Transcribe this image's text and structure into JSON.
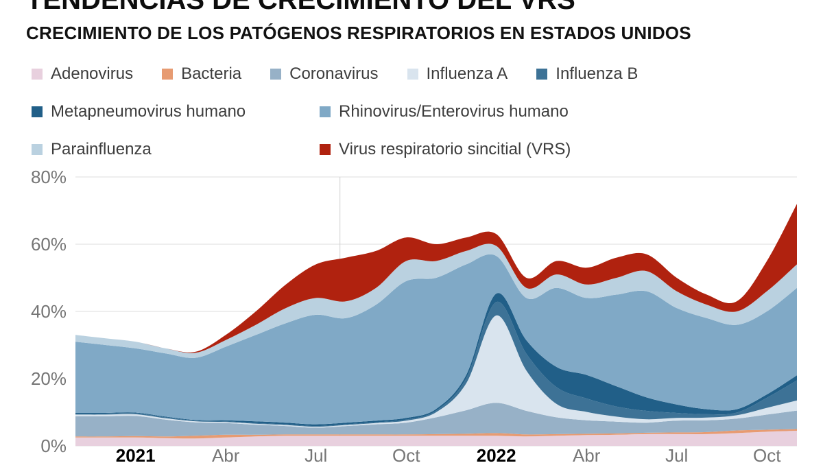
{
  "chart_data": {
    "type": "area",
    "stacked": true,
    "title": "TENDENCIAS DE CRECIMIENTO DEL VRS",
    "subtitle": "CRECIMIENTO DE LOS PATÓGENOS RESPIRATORIOS EN ESTADOS UNIDOS",
    "xlabel": "",
    "ylabel": "",
    "ylim": [
      0,
      80
    ],
    "yticks": [
      0,
      20,
      40,
      60,
      80
    ],
    "ytick_suffix": "%",
    "grid": "horizontal",
    "legend_position": "top",
    "vertical_gridline_index": 8.8,
    "x": [
      "2020-11",
      "2020-12",
      "2021-01",
      "2021-02",
      "2021-03",
      "2021-04",
      "2021-05",
      "2021-06",
      "2021-07",
      "2021-08",
      "2021-09",
      "2021-10",
      "2021-11",
      "2021-12",
      "2022-01",
      "2022-02",
      "2022-03",
      "2022-04",
      "2022-05",
      "2022-06",
      "2022-07",
      "2022-08",
      "2022-09",
      "2022-10",
      "2022-11"
    ],
    "x_ticks": [
      {
        "index": 2,
        "label": "2021",
        "bold": true
      },
      {
        "index": 5,
        "label": "Abr",
        "bold": false
      },
      {
        "index": 8,
        "label": "Jul",
        "bold": false
      },
      {
        "index": 11,
        "label": "Oct",
        "bold": false
      },
      {
        "index": 14,
        "label": "2022",
        "bold": true
      },
      {
        "index": 17,
        "label": "Abr",
        "bold": false
      },
      {
        "index": 20,
        "label": "Jul",
        "bold": false
      },
      {
        "index": 23,
        "label": "Oct",
        "bold": false
      }
    ],
    "legend_rows": [
      [
        0,
        1,
        2,
        3,
        4
      ],
      [
        5,
        6
      ],
      [
        7,
        8
      ]
    ],
    "series": [
      {
        "name": "Adenovirus",
        "color": "#e8d0de",
        "values": [
          2.5,
          2.5,
          2.5,
          2.3,
          2.2,
          2.5,
          2.8,
          3,
          3,
          3,
          3,
          3,
          3,
          3,
          3,
          2.8,
          3,
          3.2,
          3.3,
          3.5,
          3.5,
          3.5,
          3.8,
          4.2,
          4.5
        ]
      },
      {
        "name": "Bacteria",
        "color": "#e79b72",
        "values": [
          0.3,
          0.3,
          0.4,
          0.5,
          0.8,
          0.8,
          0.5,
          0.4,
          0.4,
          0.4,
          0.4,
          0.4,
          0.5,
          0.6,
          0.8,
          0.6,
          0.5,
          0.4,
          0.4,
          0.4,
          0.5,
          0.6,
          0.8,
          0.6,
          0.5
        ]
      },
      {
        "name": "Coronavirus",
        "color": "#97b1c7",
        "values": [
          6,
          6,
          6,
          5,
          4,
          3.5,
          3,
          2.5,
          2,
          2.5,
          3,
          3.5,
          5,
          7,
          9,
          7,
          5,
          4,
          3.5,
          3,
          3.5,
          3.5,
          3.5,
          4.5,
          5.5
        ]
      },
      {
        "name": "Influenza A",
        "color": "#d9e4ee",
        "values": [
          0.5,
          0.5,
          0.5,
          0.4,
          0.3,
          0.3,
          0.3,
          0.3,
          0.3,
          0.3,
          0.4,
          0.6,
          1.5,
          8,
          26,
          12,
          4,
          2.5,
          1.5,
          1,
          0.8,
          0.8,
          1,
          2,
          3
        ]
      },
      {
        "name": "Influenza B",
        "color": "#3d7296",
        "values": [
          0.3,
          0.3,
          0.3,
          0.3,
          0.2,
          0.2,
          0.2,
          0.2,
          0.2,
          0.2,
          0.2,
          0.3,
          0.5,
          1.5,
          4,
          5,
          5,
          4,
          3,
          2.5,
          1.5,
          1,
          0.8,
          3,
          6
        ]
      },
      {
        "name": "Metapneumovirus humano",
        "color": "#215f88",
        "values": [
          0.2,
          0.2,
          0.2,
          0.2,
          0.2,
          0.3,
          0.5,
          0.5,
          0.5,
          0.5,
          0.5,
          0.5,
          0.5,
          1,
          2.5,
          4,
          6,
          7,
          6,
          4,
          2.5,
          1.5,
          1,
          1,
          1.5
        ]
      },
      {
        "name": "Rhinovirus/Enterovirus humano",
        "color": "#80a9c6",
        "values": [
          21.2,
          20.2,
          19.1,
          18.8,
          18.5,
          21.9,
          25.7,
          29.6,
          32.6,
          31.1,
          34.5,
          40.7,
          39,
          32.9,
          11.2,
          12.6,
          23.5,
          22.9,
          27.3,
          31.6,
          28.7,
          27.1,
          25.1,
          24.7,
          26
        ]
      },
      {
        "name": "Parainfluenza",
        "color": "#bad1e0",
        "values": [
          2,
          2,
          2,
          1.5,
          1.5,
          2,
          3,
          4.5,
          5,
          5,
          5,
          6,
          5,
          4,
          3,
          3,
          4,
          4,
          5,
          6,
          5,
          4,
          4,
          6,
          7
        ]
      },
      {
        "name": "Virus respiratorio sincitial (VRS)",
        "color": "#b0220f",
        "values": [
          0,
          0,
          0,
          0,
          0.3,
          1.5,
          4,
          7,
          10,
          13,
          11,
          7,
          5,
          4,
          3.5,
          3,
          4,
          5,
          6,
          5,
          4,
          3,
          3,
          9,
          18
        ]
      }
    ],
    "style": {
      "gridline_color": "#dcdcdc",
      "vertical_gridline_color": "#cfcfcf",
      "axis_text_color": "#757575",
      "year_tick_color": "#000000"
    }
  }
}
